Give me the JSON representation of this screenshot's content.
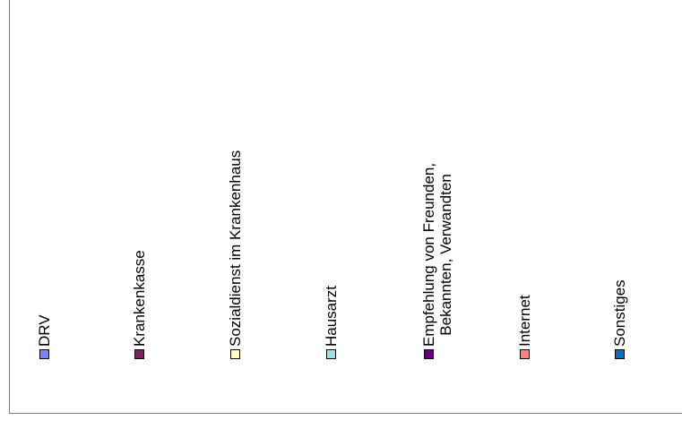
{
  "chart_data": {
    "type": "bar",
    "title": "",
    "xlabel": "",
    "ylabel": "",
    "legend_position": "bottom",
    "legend_orientation": "vertical-text",
    "series": [
      {
        "name": "DRV",
        "color": "#8080ff"
      },
      {
        "name": "Krankenkasse",
        "color": "#802060"
      },
      {
        "name": "Sozialdienst im Krankenhaus",
        "color": "#ffffc0"
      },
      {
        "name": "Hausarzt",
        "color": "#a0e0e0"
      },
      {
        "name": "Empfehlung von Freunden, Bekannten, Verwandten",
        "lines": [
          "Empfehlung von Freunden,",
          "Bekannten, Verwandten"
        ],
        "color": "#600080"
      },
      {
        "name": "Internet",
        "color": "#ff8080"
      },
      {
        "name": "Sonstiges",
        "color": "#0070c0"
      }
    ]
  }
}
